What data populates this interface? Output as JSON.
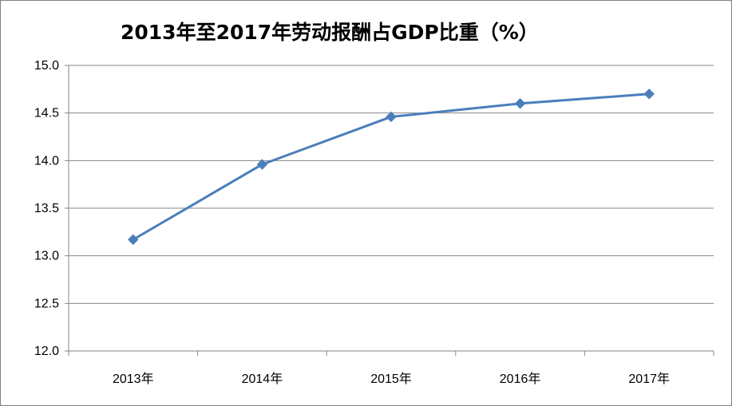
{
  "chart_data": {
    "type": "line",
    "title": "2013年至2017年劳动报酬占GDP比重（%）",
    "xlabel": "",
    "ylabel": "",
    "categories": [
      "2013年",
      "2014年",
      "2015年",
      "2016年",
      "2017年"
    ],
    "series": [
      {
        "values": [
          13.17,
          13.96,
          14.46,
          14.6,
          14.7
        ]
      }
    ],
    "ylim": [
      12.0,
      15.0
    ],
    "yticks": [
      "12.0",
      "12.5",
      "13.0",
      "13.5",
      "14.0",
      "14.5",
      "15.0"
    ],
    "grid": true,
    "legend": "none",
    "line_color": "#4a7ebb",
    "marker": "diamond"
  }
}
